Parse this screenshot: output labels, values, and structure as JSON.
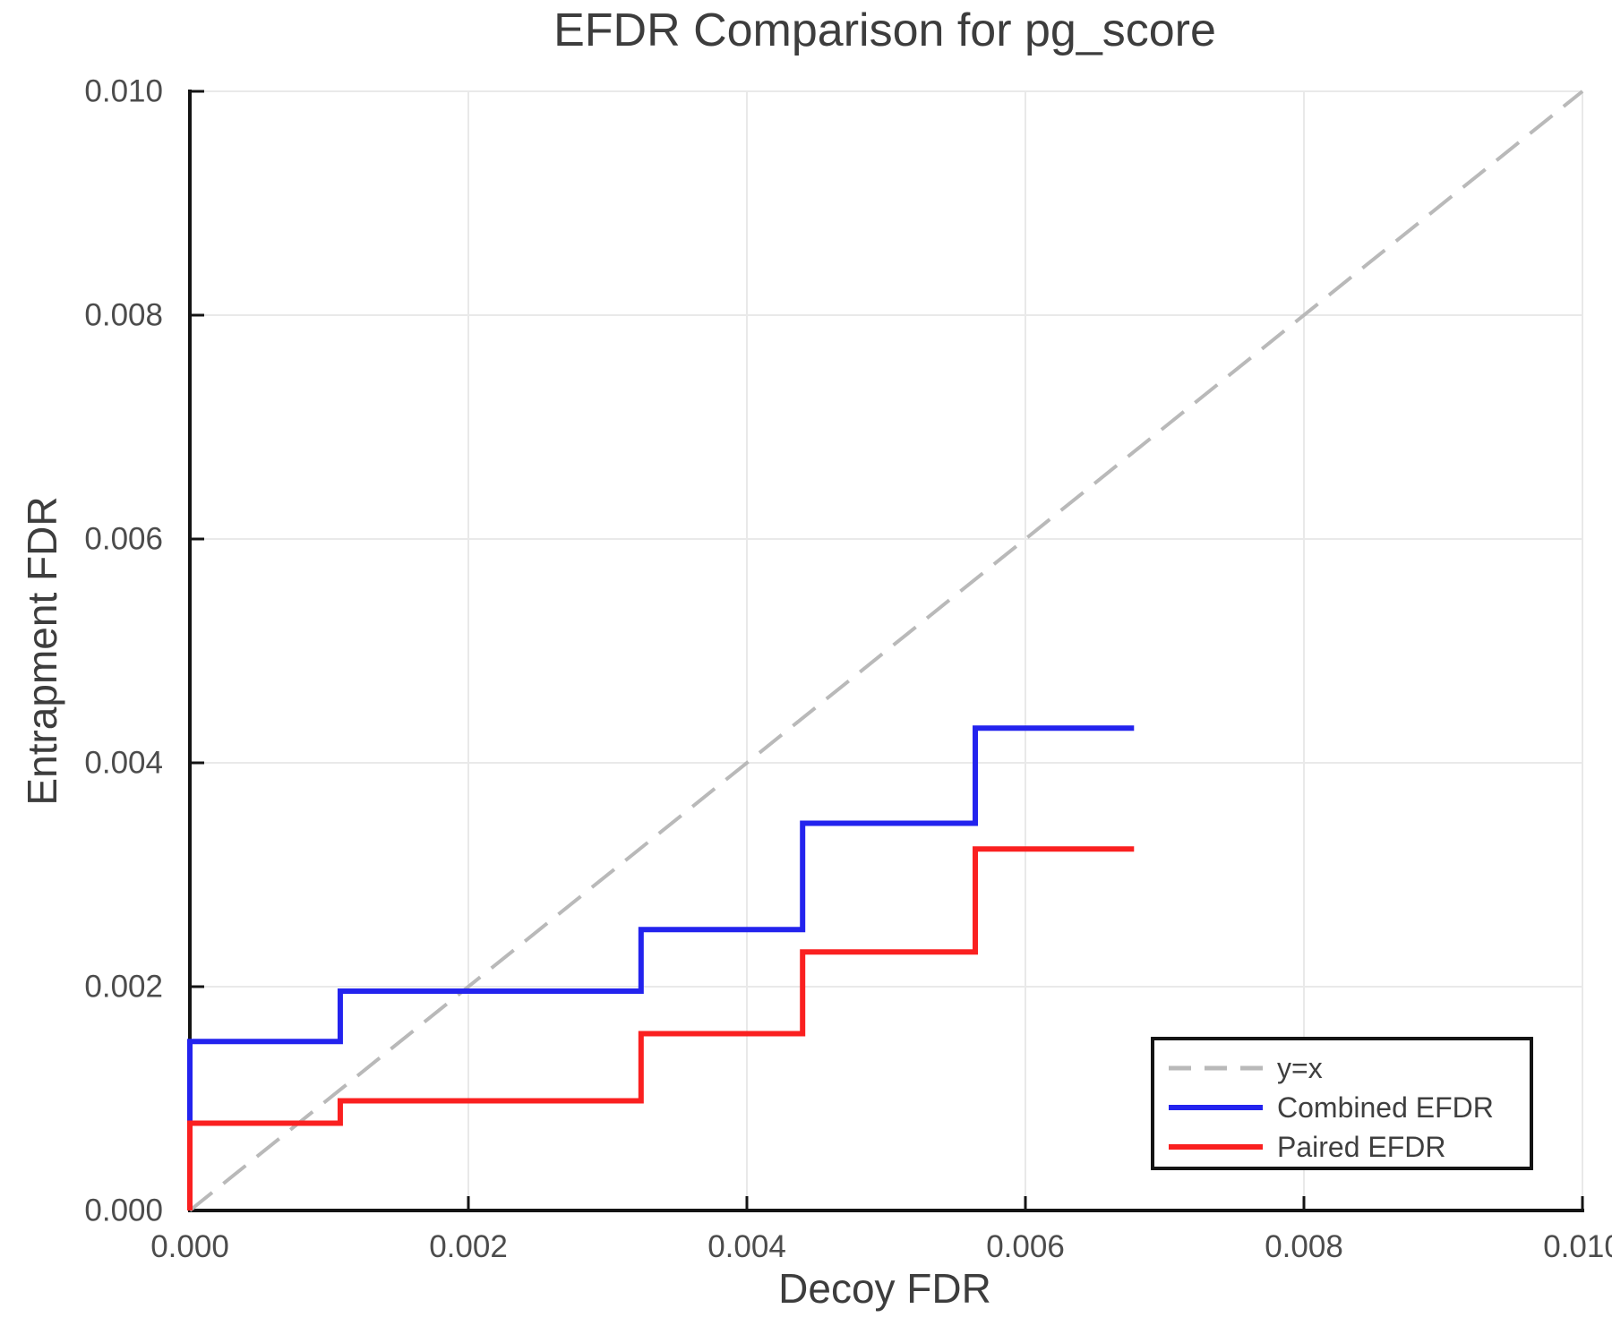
{
  "chart": {
    "title": "EFDR Comparison for pg_score",
    "xlabel": "Decoy FDR",
    "ylabel": "Entrapment FDR"
  },
  "legend": {
    "position": "lower right",
    "items": [
      {
        "label": "y=x",
        "color": "#b9b9b9",
        "dash": "25 15",
        "width": 5
      },
      {
        "label": "Combined EFDR",
        "color": "#2323ee",
        "dash": "",
        "width": 6
      },
      {
        "label": "Paired EFDR",
        "color": "#fa2020",
        "dash": "",
        "width": 6
      }
    ]
  },
  "colors": {
    "grid": "#e9e9e9",
    "spine": "#141414",
    "tick": "#141414",
    "tick_label": "#4c4c4c",
    "title": "#3d3d3d",
    "reference": "#b9b9b9",
    "combined": "#2323ee",
    "paired": "#fa2020"
  },
  "chart_data": {
    "type": "line",
    "title": "EFDR Comparison for pg_score",
    "xlabel": "Decoy FDR",
    "ylabel": "Entrapment FDR",
    "xlim": [
      0,
      0.01
    ],
    "ylim": [
      0,
      0.01
    ],
    "xticks": [
      0.0,
      0.002,
      0.004,
      0.006,
      0.008,
      0.01
    ],
    "yticks": [
      0.0,
      0.002,
      0.004,
      0.006,
      0.008,
      0.01
    ],
    "tick_decimals": 3,
    "grid": true,
    "ticks_direction": "in",
    "legend_position": "lower right",
    "reference_line": {
      "name": "y=x",
      "from": [
        0,
        0
      ],
      "to": [
        0.01,
        0.01
      ],
      "style": "dashed",
      "color": "#b9b9b9"
    },
    "series": [
      {
        "name": "Combined EFDR",
        "color": "#2323ee",
        "style": "step-after",
        "starts_at_zero": true,
        "x": [
          0.0,
          0.00108,
          0.00324,
          0.0044,
          0.00564,
          0.00678
        ],
        "y": [
          0.00151,
          0.00196,
          0.00251,
          0.00346,
          0.00431,
          0.00431
        ]
      },
      {
        "name": "Paired EFDR",
        "color": "#fa2020",
        "style": "step-after",
        "starts_at_zero": true,
        "x": [
          0.0,
          0.00108,
          0.00324,
          0.0044,
          0.00564,
          0.00678
        ],
        "y": [
          0.00078,
          0.00098,
          0.00158,
          0.00231,
          0.00323,
          0.00323
        ]
      }
    ]
  }
}
